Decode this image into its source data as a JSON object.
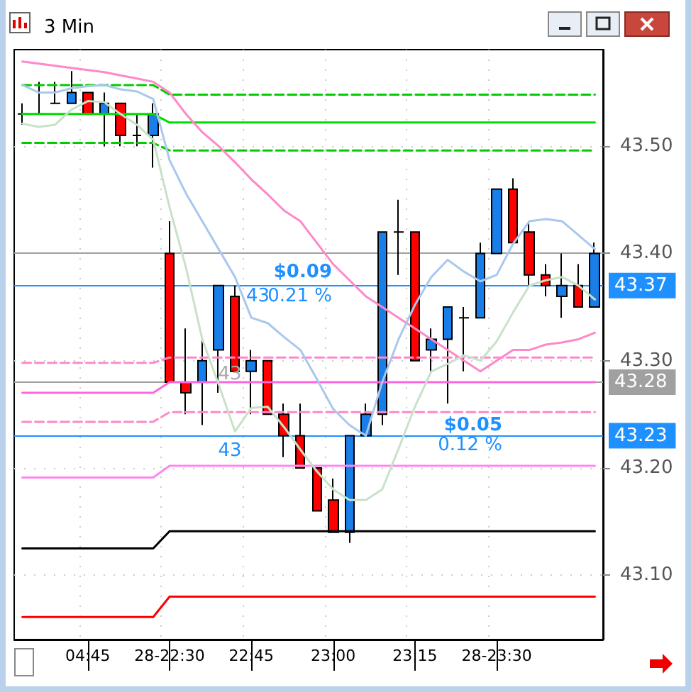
{
  "chart_data": {
    "type": "candlestick",
    "title": "3 Min",
    "categories": [
      null,
      null,
      null,
      null,
      "04:45",
      null,
      null,
      null,
      null,
      "28-22:30",
      null,
      null,
      null,
      null,
      "22:45",
      null,
      null,
      null,
      null,
      "23:00",
      null,
      null,
      null,
      null,
      "23:15",
      null,
      null,
      null,
      null,
      "28-23:30",
      null,
      null,
      null,
      null,
      null,
      null
    ],
    "series": [
      {
        "type": "line",
        "color": "#00cc00",
        "line_style": "dashed",
        "values": [
          43.557,
          43.557,
          43.557,
          43.557,
          43.557,
          43.557,
          43.557,
          43.557,
          43.557,
          43.548,
          43.548,
          43.548,
          43.548,
          43.548,
          43.548,
          43.548,
          43.548,
          43.548,
          43.548,
          43.548,
          43.548,
          43.548,
          43.548,
          43.548,
          43.548,
          43.548,
          43.548,
          43.548,
          43.548,
          43.548,
          43.548,
          43.548,
          43.548,
          43.548,
          43.548,
          43.548
        ]
      },
      {
        "type": "line",
        "color": "#00dd00",
        "line_style": "solid",
        "values": [
          43.53,
          43.53,
          43.53,
          43.53,
          43.53,
          43.53,
          43.53,
          43.53,
          43.53,
          43.522,
          43.522,
          43.522,
          43.522,
          43.522,
          43.522,
          43.522,
          43.522,
          43.522,
          43.522,
          43.522,
          43.522,
          43.522,
          43.522,
          43.522,
          43.522,
          43.522,
          43.522,
          43.522,
          43.522,
          43.522,
          43.522,
          43.522,
          43.522,
          43.522,
          43.522,
          43.522
        ]
      },
      {
        "type": "line",
        "color": "#00cc00",
        "line_style": "dashed",
        "values": [
          43.503,
          43.503,
          43.503,
          43.503,
          43.503,
          43.503,
          43.503,
          43.503,
          43.503,
          43.496,
          43.496,
          43.496,
          43.496,
          43.496,
          43.496,
          43.496,
          43.496,
          43.496,
          43.496,
          43.496,
          43.496,
          43.496,
          43.496,
          43.496,
          43.496,
          43.496,
          43.496,
          43.496,
          43.496,
          43.496,
          43.496,
          43.496,
          43.496,
          43.496,
          43.496,
          43.496
        ]
      },
      {
        "type": "line",
        "color": "#ff88cc",
        "line_style": "dashed",
        "values": [
          43.298,
          43.298,
          43.298,
          43.298,
          43.298,
          43.298,
          43.298,
          43.298,
          43.298,
          43.303,
          43.303,
          43.303,
          43.303,
          43.303,
          43.303,
          43.303,
          43.303,
          43.303,
          43.303,
          43.303,
          43.303,
          43.303,
          43.303,
          43.303,
          43.303,
          43.303,
          43.303,
          43.303,
          43.303,
          43.303,
          43.303,
          43.303,
          43.303,
          43.303,
          43.303,
          43.303
        ]
      },
      {
        "type": "line",
        "color": "#ff66dd",
        "line_style": "solid",
        "values": [
          43.27,
          43.27,
          43.27,
          43.27,
          43.27,
          43.27,
          43.27,
          43.27,
          43.27,
          43.28,
          43.28,
          43.28,
          43.28,
          43.28,
          43.28,
          43.28,
          43.28,
          43.28,
          43.28,
          43.28,
          43.28,
          43.28,
          43.28,
          43.28,
          43.28,
          43.28,
          43.28,
          43.28,
          43.28,
          43.28,
          43.28,
          43.28,
          43.28,
          43.28,
          43.28,
          43.28
        ]
      },
      {
        "type": "line",
        "color": "#ff88cc",
        "line_style": "dashed",
        "values": [
          43.243,
          43.243,
          43.243,
          43.243,
          43.243,
          43.243,
          43.243,
          43.243,
          43.243,
          43.252,
          43.252,
          43.252,
          43.252,
          43.252,
          43.252,
          43.252,
          43.252,
          43.252,
          43.252,
          43.252,
          43.252,
          43.252,
          43.252,
          43.252,
          43.252,
          43.252,
          43.252,
          43.252,
          43.252,
          43.252,
          43.252,
          43.252,
          43.252,
          43.252,
          43.252,
          43.252
        ]
      },
      {
        "type": "line",
        "color": "#ff88ee",
        "line_style": "solid",
        "values": [
          43.191,
          43.191,
          43.191,
          43.191,
          43.191,
          43.191,
          43.191,
          43.191,
          43.191,
          43.202,
          43.202,
          43.202,
          43.202,
          43.202,
          43.202,
          43.202,
          43.202,
          43.202,
          43.202,
          43.202,
          43.202,
          43.202,
          43.202,
          43.202,
          43.202,
          43.202,
          43.202,
          43.202,
          43.202,
          43.202,
          43.202,
          43.202,
          43.202,
          43.202,
          43.202,
          43.202
        ]
      },
      {
        "type": "line",
        "color": "#000000",
        "line_style": "solid",
        "values": [
          43.125,
          43.125,
          43.125,
          43.125,
          43.125,
          43.125,
          43.125,
          43.125,
          43.125,
          43.141,
          43.141,
          43.141,
          43.141,
          43.141,
          43.141,
          43.141,
          43.141,
          43.141,
          43.141,
          43.141,
          43.141,
          43.141,
          43.141,
          43.141,
          43.141,
          43.141,
          43.141,
          43.141,
          43.141,
          43.141,
          43.141,
          43.141,
          43.141,
          43.141,
          43.141,
          43.141
        ]
      },
      {
        "type": "line",
        "color": "#ff0000",
        "line_style": "solid",
        "values": [
          43.061,
          43.061,
          43.061,
          43.061,
          43.061,
          43.061,
          43.061,
          43.061,
          43.061,
          43.08,
          43.08,
          43.08,
          43.08,
          43.08,
          43.08,
          43.08,
          43.08,
          43.08,
          43.08,
          43.08,
          43.08,
          43.08,
          43.08,
          43.08,
          43.08,
          43.08,
          43.08,
          43.08,
          43.08,
          43.08,
          43.08,
          43.08,
          43.08,
          43.08,
          43.08,
          43.08
        ]
      },
      {
        "type": "line",
        "color": "#ff88c8",
        "line_style": "solid",
        "values": [
          43.579,
          43.577,
          43.575,
          43.573,
          43.571,
          43.569,
          43.566,
          43.563,
          43.56,
          43.55,
          43.53,
          43.513,
          43.5,
          43.485,
          43.469,
          43.455,
          43.44,
          43.43,
          43.41,
          43.39,
          43.375,
          43.36,
          43.35,
          43.34,
          43.33,
          43.32,
          43.31,
          43.3,
          43.29,
          43.3,
          43.31,
          43.31,
          43.315,
          43.317,
          43.32,
          43.326
        ]
      },
      {
        "type": "line",
        "color": "#a8c8ee",
        "line_style": "solid",
        "values": [
          43.557,
          43.55,
          43.55,
          43.554,
          43.556,
          43.557,
          43.553,
          43.551,
          43.544,
          43.487,
          43.456,
          43.43,
          43.404,
          43.378,
          43.34,
          43.335,
          43.322,
          43.31,
          43.283,
          43.255,
          43.24,
          43.23,
          43.28,
          43.32,
          43.352,
          43.378,
          43.394,
          43.383,
          43.374,
          43.38,
          43.409,
          43.43,
          43.432,
          43.43,
          43.417,
          43.404
        ]
      },
      {
        "type": "line",
        "color": "#c8e2c8",
        "line_style": "solid",
        "values": [
          43.521,
          43.518,
          43.52,
          43.534,
          43.542,
          43.541,
          43.53,
          43.52,
          43.506,
          43.443,
          43.387,
          43.32,
          43.278,
          43.234,
          43.256,
          43.257,
          43.238,
          43.217,
          43.197,
          43.18,
          43.17,
          43.17,
          43.18,
          43.218,
          43.257,
          43.29,
          43.297,
          43.305,
          43.3,
          43.318,
          43.345,
          43.37,
          43.375,
          43.378,
          43.37,
          43.357
        ]
      },
      {
        "ohlc": [
          [
            43.53,
            43.54,
            43.52,
            43.53
          ],
          [
            43.53,
            43.56,
            43.53,
            43.53
          ],
          [
            43.54,
            43.56,
            43.54,
            43.54
          ],
          [
            43.54,
            43.57,
            43.54,
            43.55
          ],
          [
            43.55,
            43.55,
            43.53,
            43.53
          ],
          [
            43.53,
            43.55,
            43.5,
            43.54
          ],
          [
            43.54,
            43.54,
            43.5,
            43.51
          ],
          [
            43.51,
            43.53,
            43.5,
            43.51
          ],
          [
            43.51,
            43.54,
            43.48,
            43.53
          ],
          [
            43.4,
            43.43,
            43.28,
            43.28
          ],
          [
            43.28,
            43.33,
            43.25,
            43.27
          ],
          [
            43.28,
            43.32,
            43.24,
            43.3
          ],
          [
            43.31,
            43.37,
            43.27,
            43.37
          ],
          [
            43.36,
            43.37,
            43.29,
            43.29
          ],
          [
            43.29,
            43.31,
            43.25,
            43.3
          ],
          [
            43.3,
            43.3,
            43.25,
            43.25
          ],
          [
            43.25,
            43.26,
            43.21,
            43.23
          ],
          [
            43.23,
            43.26,
            43.2,
            43.2
          ],
          [
            43.2,
            43.2,
            43.16,
            43.16
          ],
          [
            43.17,
            43.19,
            43.14,
            43.14
          ],
          [
            43.14,
            43.23,
            43.13,
            43.23
          ],
          [
            43.23,
            43.26,
            43.23,
            43.25
          ],
          [
            43.25,
            43.42,
            43.24,
            43.42
          ],
          [
            43.42,
            43.45,
            43.38,
            43.42
          ],
          [
            43.42,
            43.42,
            43.3,
            43.3
          ],
          [
            43.31,
            43.33,
            43.29,
            43.32
          ],
          [
            43.32,
            43.35,
            43.26,
            43.35
          ],
          [
            43.34,
            43.35,
            43.29,
            43.34
          ],
          [
            43.34,
            43.41,
            43.34,
            43.4
          ],
          [
            43.4,
            43.46,
            43.4,
            43.46
          ],
          [
            43.46,
            43.47,
            43.41,
            43.41
          ],
          [
            43.42,
            43.43,
            43.37,
            43.38
          ],
          [
            43.38,
            43.39,
            43.36,
            43.37
          ],
          [
            43.36,
            43.4,
            43.34,
            43.37
          ],
          [
            43.37,
            43.39,
            43.35,
            43.35
          ],
          [
            43.35,
            43.41,
            43.35,
            43.4
          ]
        ],
        "colors": [
          "#000000",
          "#000000",
          "#000000",
          "#1a7ee8",
          "#ff0000",
          "#1a7ee8",
          "#ff0000",
          "#000000",
          "#1a7ee8",
          "#ff0000",
          "#ff0000",
          "#1a7ee8",
          "#1a7ee8",
          "#ff0000",
          "#1a7ee8",
          "#ff0000",
          "#ff0000",
          "#ff0000",
          "#ff0000",
          "#ff0000",
          "#1a7ee8",
          "#1a7ee8",
          "#1a7ee8",
          "#000000",
          "#ff0000",
          "#1a7ee8",
          "#1a7ee8",
          "#000000",
          "#1a7ee8",
          "#1a7ee8",
          "#ff0000",
          "#ff0000",
          "#ff0000",
          "#1a7ee8",
          "#ff0000",
          "#1a7ee8"
        ]
      }
    ],
    "ylim": [
      43.04,
      43.59
    ],
    "yticks": [
      {
        "value": 43.1,
        "label": "43.10"
      },
      {
        "value": 43.2,
        "label": "43.20"
      },
      {
        "value": 43.3,
        "label": "43.30"
      },
      {
        "value": 43.4,
        "label": "43.40"
      },
      {
        "value": 43.5,
        "label": "43.50"
      }
    ],
    "grid": true,
    "ref_lines": [
      {
        "axis": "y",
        "value": 43.4,
        "color": "#a0a0a0"
      },
      {
        "axis": "y",
        "value": 43.37,
        "label": "43.37",
        "color": "#1e90ff"
      },
      {
        "axis": "y",
        "value": 43.28,
        "label": "43.28",
        "color": "#a0a0a0"
      },
      {
        "axis": "y",
        "value": 43.23,
        "label": "43.23",
        "color": "#1e90ff"
      }
    ],
    "annotations": [
      "$0.09",
      "43",
      "0.21 %",
      "43",
      "43",
      "$0.05",
      "0.12 %"
    ]
  }
}
